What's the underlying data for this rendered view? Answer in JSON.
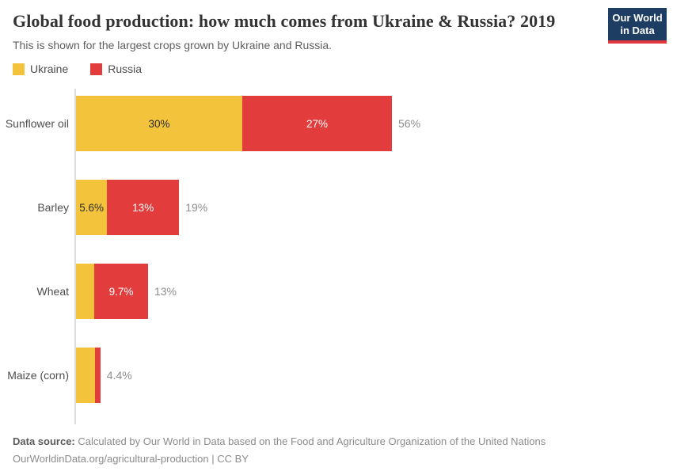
{
  "header": {
    "title": "Global food production: how much comes from Ukraine & Russia? 2019",
    "subtitle": "This is shown for the largest crops grown by Ukraine and Russia.",
    "logo": {
      "line1": "Our World",
      "line2": "in Data"
    }
  },
  "legend": {
    "items": [
      {
        "label": "Ukraine",
        "color": "#f3c33c"
      },
      {
        "label": "Russia",
        "color": "#e23c3c"
      }
    ]
  },
  "chart_data": {
    "type": "bar",
    "orientation": "horizontal",
    "stacked": true,
    "categories": [
      "Sunflower oil",
      "Barley",
      "Wheat",
      "Maize (corn)"
    ],
    "series": [
      {
        "name": "Ukraine",
        "color": "#f3c33c",
        "label_color": "#2d2d2d",
        "values": [
          30,
          5.6,
          3.3,
          3.4
        ]
      },
      {
        "name": "Russia",
        "color": "#e23c3c",
        "label_color": "#ffffff",
        "values": [
          27,
          13,
          9.7,
          1.0
        ]
      }
    ],
    "segment_labels": [
      [
        "30%",
        "27%"
      ],
      [
        "5.6%",
        "13%"
      ],
      [
        "",
        "9.7%"
      ],
      [
        "",
        ""
      ]
    ],
    "totals": [
      56,
      19,
      13,
      4.4
    ],
    "total_labels": [
      "56%",
      "19%",
      "13%",
      "4.4%"
    ],
    "xlim": [
      0,
      100
    ],
    "unit": "%",
    "grid": false,
    "legend_position": "top-left",
    "axis_color": "#dedede"
  },
  "footer": {
    "source_label": "Data source:",
    "source_text": " Calculated by Our World in Data based on the Food and Agriculture Organization of the United Nations",
    "line2": "OurWorldinData.org/agricultural-production | CC BY"
  }
}
